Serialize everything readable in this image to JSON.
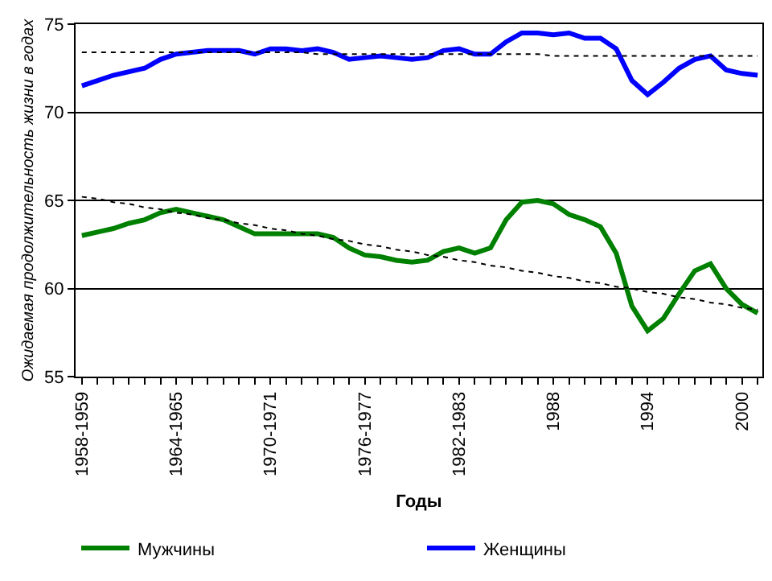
{
  "chart_data": {
    "type": "line",
    "xlabel": "Годы",
    "ylabel": "Ожидаемая продолжительность жизни в годах",
    "categories": [
      "1958-1959",
      null,
      null,
      null,
      null,
      null,
      "1964-1965",
      null,
      null,
      null,
      null,
      null,
      "1970-1971",
      null,
      null,
      null,
      null,
      null,
      "1976-1977",
      null,
      null,
      null,
      null,
      null,
      "1982-1983",
      null,
      null,
      null,
      null,
      null,
      "1988",
      null,
      null,
      null,
      null,
      null,
      "1994",
      null,
      null,
      null,
      null,
      null,
      "2000",
      null
    ],
    "series": [
      {
        "name": "Мужчины",
        "color": "#008000",
        "values": [
          63.0,
          63.2,
          63.4,
          63.7,
          63.9,
          64.3,
          64.5,
          64.3,
          64.1,
          63.9,
          63.5,
          63.1,
          63.1,
          63.1,
          63.1,
          63.1,
          62.9,
          62.3,
          61.9,
          61.8,
          61.6,
          61.5,
          61.6,
          62.1,
          62.3,
          62.0,
          62.3,
          63.9,
          64.9,
          65.0,
          64.8,
          64.2,
          63.9,
          63.5,
          62.0,
          59.0,
          57.6,
          58.3,
          59.7,
          61.0,
          61.4,
          60.0,
          59.1,
          58.6
        ]
      },
      {
        "name": "Женщины",
        "color": "#0000ff",
        "values": [
          71.5,
          71.8,
          72.1,
          72.3,
          72.5,
          73.0,
          73.3,
          73.4,
          73.5,
          73.5,
          73.5,
          73.3,
          73.6,
          73.6,
          73.5,
          73.6,
          73.4,
          73.0,
          73.1,
          73.2,
          73.1,
          73.0,
          73.1,
          73.5,
          73.6,
          73.3,
          73.3,
          74.0,
          74.5,
          74.5,
          74.4,
          74.5,
          74.2,
          74.2,
          73.6,
          71.8,
          71.0,
          71.7,
          72.5,
          73.0,
          73.2,
          72.4,
          72.2,
          72.1
        ]
      },
      {
        "color": "#000000",
        "line_style": "dotted",
        "values": [
          65.2,
          65.1,
          64.9,
          64.8,
          64.6,
          64.5,
          64.3,
          64.2,
          64.0,
          63.9,
          63.7,
          63.6,
          63.4,
          63.3,
          63.1,
          63.0,
          62.8,
          62.7,
          62.5,
          62.4,
          62.2,
          62.1,
          61.9,
          61.8,
          61.6,
          61.5,
          61.3,
          61.2,
          61.0,
          60.9,
          60.7,
          60.6,
          60.4,
          60.3,
          60.1,
          60.0,
          59.8,
          59.7,
          59.5,
          59.4,
          59.2,
          59.1,
          58.9,
          58.8
        ]
      },
      {
        "color": "#000000",
        "line_style": "dotted",
        "values": [
          73.4,
          73.4,
          73.4,
          73.4,
          73.4,
          73.4,
          73.4,
          73.4,
          73.4,
          73.4,
          73.4,
          73.4,
          73.4,
          73.4,
          73.4,
          73.3,
          73.3,
          73.3,
          73.3,
          73.3,
          73.3,
          73.3,
          73.3,
          73.3,
          73.3,
          73.3,
          73.3,
          73.3,
          73.3,
          73.3,
          73.2,
          73.2,
          73.2,
          73.2,
          73.2,
          73.2,
          73.2,
          73.2,
          73.2,
          73.2,
          73.2,
          73.2,
          73.2,
          73.2
        ]
      }
    ],
    "ylim": [
      55,
      75
    ],
    "yticks": [
      55,
      60,
      65,
      70,
      75
    ],
    "grid": "y",
    "legend": "bottom",
    "marker": "none",
    "line_style": "solid"
  }
}
